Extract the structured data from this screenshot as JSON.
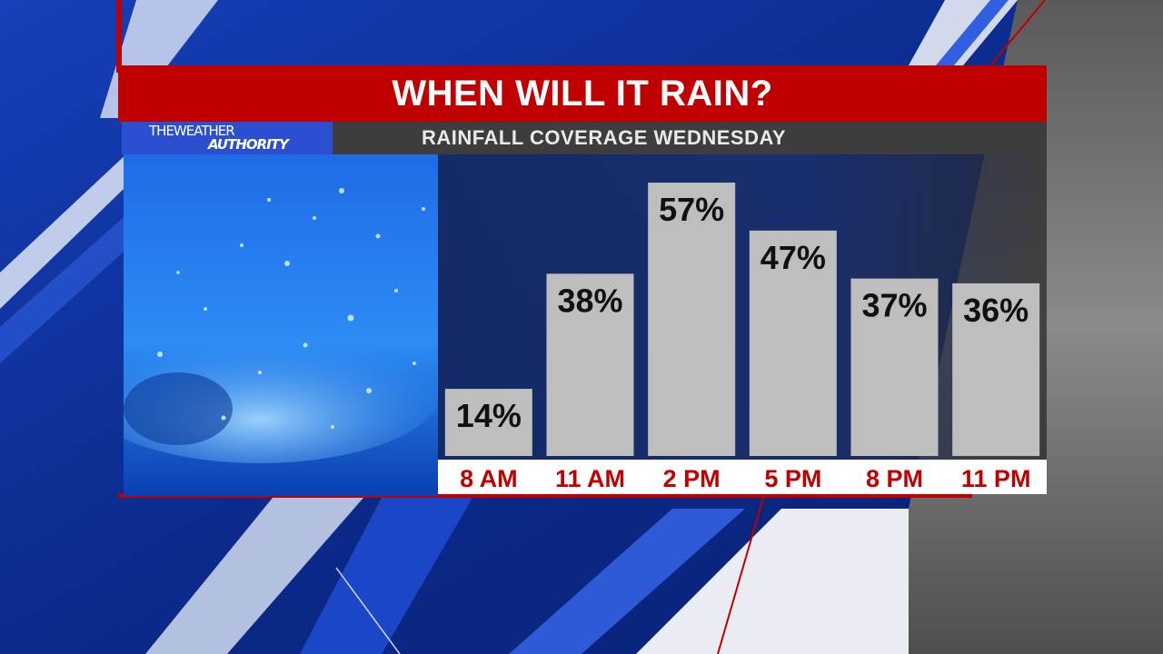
{
  "title": "WHEN WILL IT RAIN?",
  "subtitle": "RAINFALL COVERAGE WEDNESDAY",
  "logo": {
    "line1": "THEWEATHER",
    "line2": "AUTHORITY"
  },
  "colors": {
    "brand_red": "#c00000",
    "bar_gray": "#bebebe",
    "label_red": "#c00000",
    "background_blue": "#0b2a8c"
  },
  "chart_data": {
    "type": "bar",
    "categories": [
      "8 AM",
      "11 AM",
      "2 PM",
      "5 PM",
      "8 PM",
      "11 PM"
    ],
    "values": [
      14,
      38,
      57,
      47,
      37,
      36
    ],
    "value_labels": [
      "14%",
      "38%",
      "57%",
      "47%",
      "37%",
      "36%"
    ],
    "title": "RAINFALL COVERAGE WEDNESDAY",
    "unit": "%",
    "grid": false,
    "legend": "none"
  }
}
